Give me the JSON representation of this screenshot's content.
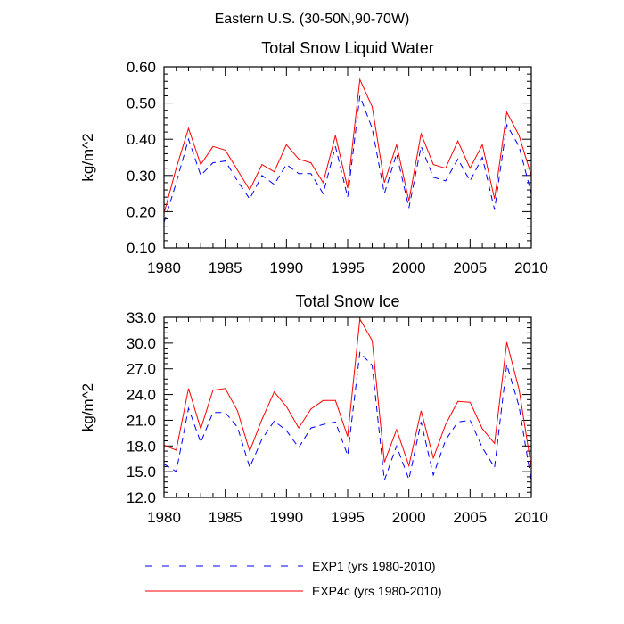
{
  "figure": {
    "main_title": "Eastern U.S. (30-50N,90-70W)"
  },
  "colors": {
    "exp1": "#0000ff",
    "exp4c": "#ff0000",
    "axis": "#000000"
  },
  "chart_data": [
    {
      "type": "line",
      "title": "Total Snow Liquid Water",
      "xlabel": "",
      "ylabel": "kg/m^2",
      "xlim": [
        1980,
        2010
      ],
      "ylim": [
        0.1,
        0.6
      ],
      "x_ticks": [
        1980,
        1985,
        1990,
        1995,
        2000,
        2005,
        2010
      ],
      "x_tick_labels": [
        "1980",
        "1985",
        "1990",
        "1995",
        "2000",
        "2005",
        "2010"
      ],
      "y_ticks": [
        0.1,
        0.2,
        0.3,
        0.4,
        0.5,
        0.6
      ],
      "y_tick_labels": [
        "0.10",
        "0.20",
        "0.30",
        "0.40",
        "0.50",
        "0.60"
      ],
      "x": [
        1980,
        1981,
        1982,
        1983,
        1984,
        1985,
        1986,
        1987,
        1988,
        1989,
        1990,
        1991,
        1992,
        1993,
        1994,
        1995,
        1996,
        1997,
        1998,
        1999,
        2000,
        2001,
        2002,
        2003,
        2004,
        2005,
        2006,
        2007,
        2008,
        2009,
        2010
      ],
      "series": [
        {
          "name": "EXP1 (yrs 1980-2010)",
          "style": "dashed",
          "color": "#0000ff",
          "values": [
            0.17,
            0.28,
            0.4,
            0.3,
            0.335,
            0.34,
            0.285,
            0.235,
            0.3,
            0.275,
            0.33,
            0.305,
            0.305,
            0.25,
            0.38,
            0.24,
            0.52,
            0.43,
            0.25,
            0.36,
            0.21,
            0.38,
            0.295,
            0.285,
            0.345,
            0.285,
            0.35,
            0.205,
            0.44,
            0.38,
            0.25
          ]
        },
        {
          "name": "EXP4c (yrs 1980-2010)",
          "style": "solid",
          "color": "#ff0000",
          "values": [
            0.195,
            0.32,
            0.43,
            0.33,
            0.38,
            0.37,
            0.315,
            0.26,
            0.33,
            0.31,
            0.385,
            0.345,
            0.335,
            0.28,
            0.41,
            0.265,
            0.565,
            0.49,
            0.28,
            0.385,
            0.23,
            0.415,
            0.33,
            0.32,
            0.395,
            0.32,
            0.385,
            0.235,
            0.475,
            0.41,
            0.3
          ]
        }
      ]
    },
    {
      "type": "line",
      "title": "Total Snow Ice",
      "xlabel": "",
      "ylabel": "kg/m^2",
      "xlim": [
        1980,
        2010
      ],
      "ylim": [
        12.0,
        33.0
      ],
      "x_ticks": [
        1980,
        1985,
        1990,
        1995,
        2000,
        2005,
        2010
      ],
      "x_tick_labels": [
        "1980",
        "1985",
        "1990",
        "1995",
        "2000",
        "2005",
        "2010"
      ],
      "y_ticks": [
        12,
        15,
        18,
        21,
        24,
        27,
        30,
        33
      ],
      "y_tick_labels": [
        "12.0",
        "15.0",
        "18.0",
        "21.0",
        "24.0",
        "27.0",
        "30.0",
        "33.0"
      ],
      "x": [
        1980,
        1981,
        1982,
        1983,
        1984,
        1985,
        1986,
        1987,
        1988,
        1989,
        1990,
        1991,
        1992,
        1993,
        1994,
        1995,
        1996,
        1997,
        1998,
        1999,
        2000,
        2001,
        2002,
        2003,
        2004,
        2005,
        2006,
        2007,
        2008,
        2009,
        2010
      ],
      "series": [
        {
          "name": "EXP1 (yrs 1980-2010)",
          "style": "dashed",
          "color": "#0000ff",
          "values": [
            15.9,
            15.0,
            22.4,
            18.4,
            21.9,
            21.9,
            20.2,
            15.5,
            18.8,
            20.9,
            19.8,
            17.8,
            20.1,
            20.5,
            20.8,
            16.9,
            28.9,
            27.4,
            14.0,
            18.0,
            14.1,
            20.8,
            14.6,
            18.7,
            20.8,
            21.0,
            17.8,
            15.5,
            27.5,
            22.6,
            13.9
          ]
        },
        {
          "name": "EXP4c (yrs 1980-2010)",
          "style": "solid",
          "color": "#ff0000",
          "values": [
            18.1,
            17.5,
            24.7,
            20.0,
            24.5,
            24.7,
            22.1,
            17.4,
            21.1,
            24.3,
            22.6,
            20.1,
            22.3,
            23.3,
            23.3,
            19.1,
            32.8,
            30.3,
            16.1,
            19.9,
            15.7,
            22.1,
            16.6,
            20.5,
            23.2,
            23.1,
            20.0,
            18.3,
            30.1,
            24.6,
            15.5
          ]
        }
      ]
    }
  ],
  "legend": {
    "placement": "bottom-left",
    "items": [
      {
        "label": "EXP1 (yrs 1980-2010)",
        "style": "dashed",
        "color": "#0000ff"
      },
      {
        "label": "EXP4c (yrs 1980-2010)",
        "style": "solid",
        "color": "#ff0000"
      }
    ]
  }
}
